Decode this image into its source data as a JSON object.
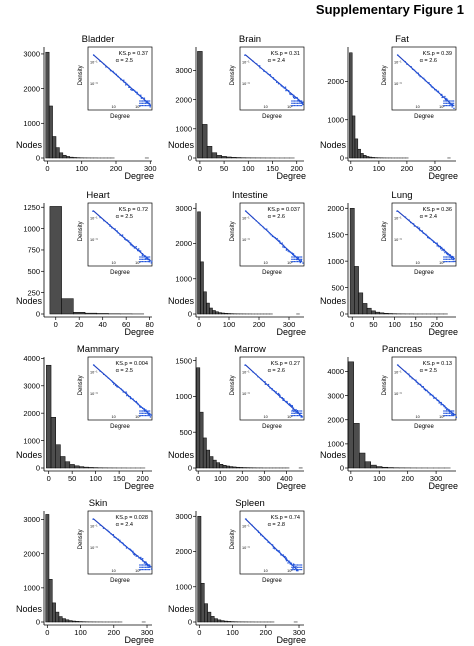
{
  "figure_title": "Supplementary Figure 1",
  "chart_data": [
    {
      "type": "bar",
      "title": "Bladder",
      "xlabel": "Degree",
      "ylabel": "Nodes",
      "bin_width": 10,
      "xlim": [
        -10,
        305
      ],
      "ylim": [
        0,
        3200
      ],
      "x_ticks": [
        0,
        100,
        200,
        300
      ],
      "y_ticks": [
        0,
        1000,
        2000,
        3000
      ],
      "values": [
        3050,
        1500,
        620,
        300,
        150,
        80,
        45,
        25,
        15,
        10,
        6,
        4,
        3,
        2,
        2,
        1,
        1,
        1,
        1,
        1,
        0,
        0,
        0,
        0,
        0,
        0,
        0,
        0,
        0,
        1
      ],
      "inset": {
        "type": "scatter",
        "xlabel": "Degree",
        "ylabel": "Density",
        "ks_p": "KS.p = 0.37",
        "alpha": "α = 2.5",
        "alpha_value": 2.5,
        "x_ticks": [
          "10",
          "10²"
        ],
        "y_ticks": [
          "10⁻¹",
          "10⁻³"
        ]
      }
    },
    {
      "type": "bar",
      "title": "Brain",
      "xlabel": "Degree",
      "ylabel": "Nodes",
      "bin_width": 10,
      "xlim": [
        -8,
        215
      ],
      "ylim": [
        0,
        3800
      ],
      "x_ticks": [
        0,
        50,
        100,
        150,
        200
      ],
      "y_ticks": [
        0,
        1000,
        2000,
        3000
      ],
      "values": [
        3650,
        1150,
        400,
        180,
        90,
        55,
        35,
        22,
        15,
        10,
        7,
        5,
        4,
        3,
        2,
        2,
        1,
        1,
        1,
        1
      ],
      "inset": {
        "type": "scatter",
        "xlabel": "Degree",
        "ylabel": "Density",
        "ks_p": "KS.p = 0.31",
        "alpha": "α = 2.4",
        "alpha_value": 2.4,
        "x_ticks": [
          "10",
          "10²"
        ],
        "y_ticks": [
          "10⁻¹",
          "10⁻³"
        ]
      }
    },
    {
      "type": "bar",
      "title": "Fat",
      "xlabel": "Degree",
      "ylabel": "Nodes",
      "bin_width": 10,
      "xlim": [
        -10,
        375
      ],
      "ylim": [
        0,
        2900
      ],
      "x_ticks": [
        0,
        100,
        200,
        300
      ],
      "y_ticks": [
        0,
        1000,
        2000
      ],
      "values": [
        2750,
        1100,
        500,
        230,
        120,
        70,
        40,
        25,
        15,
        10,
        7,
        5,
        3,
        2,
        2,
        1,
        1,
        1,
        1,
        1,
        1,
        0,
        0,
        0,
        0,
        0,
        0,
        0,
        0,
        0,
        0,
        0,
        0,
        0,
        0,
        1
      ],
      "inset": {
        "type": "scatter",
        "xlabel": "Degree",
        "ylabel": "Density",
        "ks_p": "KS.p = 0.39",
        "alpha": "α = 2.6",
        "alpha_value": 2.6,
        "x_ticks": [
          "10",
          "10²"
        ],
        "y_ticks": [
          "10⁻¹",
          "10⁻³"
        ]
      }
    },
    {
      "type": "bar",
      "title": "Heart",
      "xlabel": "Degree",
      "ylabel": "Nodes",
      "bin_width": 10,
      "xlim": [
        -10,
        82
      ],
      "ylim": [
        0,
        1300
      ],
      "x_ticks": [
        0,
        20,
        40,
        60,
        80
      ],
      "y_ticks": [
        0,
        250,
        500,
        750,
        1000,
        1250
      ],
      "values": [
        1260,
        180,
        20,
        10,
        6,
        3,
        2,
        1
      ],
      "inset": {
        "type": "scatter",
        "xlabel": "Degree",
        "ylabel": "Density",
        "ks_p": "KS.p = 0.72",
        "alpha": "α = 2.5",
        "alpha_value": 2.5,
        "x_ticks": [
          "10",
          "10²"
        ],
        "y_ticks": [
          "10⁻¹",
          "10⁻³"
        ]
      }
    },
    {
      "type": "bar",
      "title": "Intestine",
      "xlabel": "Degree",
      "ylabel": "Nodes",
      "bin_width": 10,
      "xlim": [
        -10,
        350
      ],
      "ylim": [
        0,
        3150
      ],
      "x_ticks": [
        0,
        100,
        200,
        300
      ],
      "y_ticks": [
        0,
        1000,
        2000,
        3000
      ],
      "values": [
        2900,
        1480,
        630,
        310,
        170,
        100,
        65,
        40,
        28,
        20,
        14,
        10,
        7,
        5,
        4,
        3,
        2,
        2,
        1,
        1,
        1,
        1,
        1,
        1,
        1,
        0,
        0,
        0,
        0,
        0,
        0,
        0,
        0,
        1
      ],
      "inset": {
        "type": "scatter",
        "xlabel": "Degree",
        "ylabel": "Density",
        "ks_p": "KS.p = 0.037",
        "alpha": "α = 2.6",
        "alpha_value": 2.6,
        "x_ticks": [
          "10",
          "10²"
        ],
        "y_ticks": [
          "10⁻¹",
          "10⁻³"
        ]
      }
    },
    {
      "type": "bar",
      "title": "Lung",
      "xlabel": "Degree",
      "ylabel": "Nodes",
      "bin_width": 10,
      "xlim": [
        -10,
        245
      ],
      "ylim": [
        0,
        2100
      ],
      "x_ticks": [
        0,
        50,
        100,
        150,
        200
      ],
      "y_ticks": [
        0,
        500,
        1000,
        1500,
        2000
      ],
      "values": [
        2000,
        900,
        400,
        200,
        110,
        60,
        35,
        22,
        14,
        9,
        6,
        4,
        3,
        2,
        2,
        1,
        1,
        1,
        1,
        1,
        1,
        1,
        1
      ],
      "inset": {
        "type": "scatter",
        "xlabel": "Degree",
        "ylabel": "Density",
        "ks_p": "KS.p = 0.36",
        "alpha": "α = 2.4",
        "alpha_value": 2.4,
        "x_ticks": [
          "10",
          "10²"
        ],
        "y_ticks": [
          "10⁻¹",
          "10⁻³"
        ]
      }
    },
    {
      "type": "bar",
      "title": "Mammary",
      "xlabel": "Degree",
      "ylabel": "Nodes",
      "bin_width": 10,
      "xlim": [
        -10,
        220
      ],
      "ylim": [
        0,
        4050
      ],
      "x_ticks": [
        0,
        50,
        100,
        150,
        200
      ],
      "y_ticks": [
        0,
        1000,
        2000,
        3000,
        4000
      ],
      "values": [
        3750,
        1850,
        850,
        420,
        230,
        130,
        80,
        50,
        32,
        20,
        14,
        9,
        6,
        4,
        3,
        2,
        2,
        1,
        1,
        1,
        1
      ],
      "inset": {
        "type": "scatter",
        "xlabel": "Degree",
        "ylabel": "Density",
        "ks_p": "KS.p = 0.004",
        "alpha": "α = 2.5",
        "alpha_value": 2.5,
        "x_ticks": [
          "10",
          "10²"
        ],
        "y_ticks": [
          "10⁻¹",
          "10⁻³"
        ]
      }
    },
    {
      "type": "bar",
      "title": "Marrow",
      "xlabel": "Degree",
      "ylabel": "Nodes",
      "bin_width": 15,
      "xlim": [
        -10,
        480
      ],
      "ylim": [
        0,
        1550
      ],
      "x_ticks": [
        0,
        100,
        200,
        300,
        400
      ],
      "y_ticks": [
        0,
        500,
        1000,
        1500
      ],
      "values": [
        1400,
        780,
        420,
        250,
        160,
        110,
        75,
        52,
        38,
        28,
        20,
        15,
        11,
        8,
        6,
        5,
        4,
        3,
        2,
        2,
        1,
        1,
        1,
        1,
        1,
        1,
        1,
        1,
        0,
        0,
        0,
        1
      ],
      "inset": {
        "type": "scatter",
        "xlabel": "Degree",
        "ylabel": "Density",
        "ks_p": "KS.p = 0.27",
        "alpha": "α = 2.6",
        "alpha_value": 2.6,
        "x_ticks": [
          "10",
          "10²"
        ],
        "y_ticks": [
          "10⁻¹",
          "10⁻³"
        ]
      }
    },
    {
      "type": "bar",
      "title": "Pancreas",
      "xlabel": "Degree",
      "ylabel": "Nodes",
      "bin_width": 20,
      "xlim": [
        -10,
        370
      ],
      "ylim": [
        0,
        4600
      ],
      "x_ticks": [
        0,
        100,
        200,
        300
      ],
      "y_ticks": [
        0,
        1000,
        2000,
        3000,
        4000
      ],
      "values": [
        4400,
        1850,
        620,
        260,
        120,
        60,
        32,
        18,
        11,
        7,
        5,
        3,
        2,
        2,
        1,
        1,
        1,
        1
      ],
      "inset": {
        "type": "scatter",
        "xlabel": "Degree",
        "ylabel": "Density",
        "ks_p": "KS.p = 0.13",
        "alpha": "α = 2.5",
        "alpha_value": 2.5,
        "x_ticks": [
          "10",
          "10²"
        ],
        "y_ticks": [
          "10⁻¹",
          "10⁻³"
        ]
      }
    },
    {
      "type": "bar",
      "title": "Skin",
      "xlabel": "Degree",
      "ylabel": "Nodes",
      "bin_width": 10,
      "xlim": [
        -10,
        315
      ],
      "ylim": [
        0,
        3250
      ],
      "x_ticks": [
        0,
        100,
        200,
        300
      ],
      "y_ticks": [
        0,
        1000,
        2000,
        3000
      ],
      "values": [
        3150,
        1250,
        560,
        290,
        160,
        100,
        65,
        42,
        28,
        19,
        13,
        9,
        6,
        4,
        3,
        2,
        2,
        1,
        1,
        1,
        1,
        1,
        1,
        0,
        0,
        0,
        0,
        0,
        0,
        1
      ],
      "inset": {
        "type": "scatter",
        "xlabel": "Degree",
        "ylabel": "Density",
        "ks_p": "KS.p = 0.028",
        "alpha": "α = 2.4",
        "alpha_value": 2.4,
        "x_ticks": [
          "10",
          "10²"
        ],
        "y_ticks": [
          "10⁻¹",
          "10⁻³"
        ]
      }
    },
    {
      "type": "bar",
      "title": "Spleen",
      "xlabel": "Degree",
      "ylabel": "Nodes",
      "bin_width": 10,
      "xlim": [
        -10,
        315
      ],
      "ylim": [
        0,
        3150
      ],
      "x_ticks": [
        0,
        100,
        200,
        300
      ],
      "y_ticks": [
        0,
        1000,
        2000,
        3000
      ],
      "values": [
        3000,
        1100,
        520,
        280,
        160,
        95,
        60,
        40,
        26,
        17,
        11,
        8,
        5,
        4,
        3,
        2,
        2,
        1,
        1,
        1,
        1,
        1,
        1,
        0,
        0,
        0,
        0,
        0,
        0,
        1
      ],
      "inset": {
        "type": "scatter",
        "xlabel": "Degree",
        "ylabel": "Density",
        "ks_p": "KS.p = 0.74",
        "alpha": "α = 2.8",
        "alpha_value": 2.8,
        "x_ticks": [
          "10",
          "10²"
        ],
        "y_ticks": [
          "10⁻¹",
          "10⁻³"
        ]
      }
    }
  ],
  "colors": {
    "bar_fill": "#4d4d4d",
    "bar_stroke": "#000000",
    "fit_line": "#1f3fbf",
    "points": "#2255dd",
    "axis": "#000000"
  }
}
